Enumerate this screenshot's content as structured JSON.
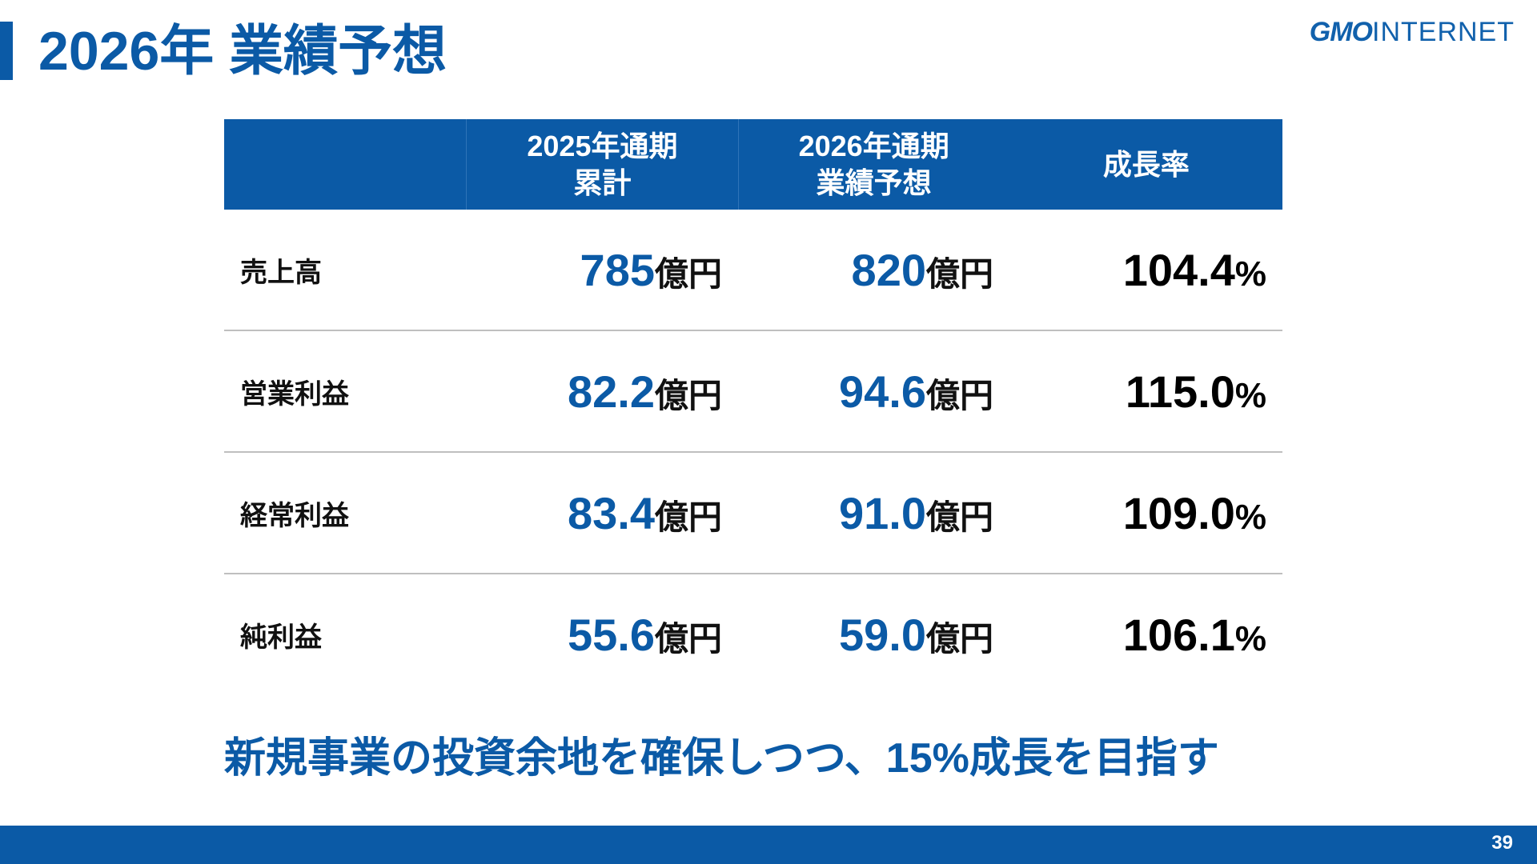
{
  "header": {
    "title": "2026年 業績予想",
    "logo": {
      "mark": "GMO",
      "name": "INTERNET"
    }
  },
  "table": {
    "columns": [
      [
        "2025年通期",
        "累計"
      ],
      [
        "2026年通期",
        "業績予想"
      ],
      [
        "成長率"
      ]
    ],
    "rows": [
      {
        "label": "売上高",
        "cells": [
          {
            "number": "785",
            "unit": "億円"
          },
          {
            "number": "820",
            "unit": "億円"
          },
          {
            "number": "104.4",
            "unit": "%"
          }
        ]
      },
      {
        "label": "営業利益",
        "cells": [
          {
            "number": "82.2",
            "unit": "億円"
          },
          {
            "number": "94.6",
            "unit": "億円"
          },
          {
            "number": "115.0",
            "unit": "%"
          }
        ]
      },
      {
        "label": "経常利益",
        "cells": [
          {
            "number": "83.4",
            "unit": "億円"
          },
          {
            "number": "91.0",
            "unit": "億円"
          },
          {
            "number": "109.0",
            "unit": "%"
          }
        ]
      },
      {
        "label": "純利益",
        "cells": [
          {
            "number": "55.6",
            "unit": "億円"
          },
          {
            "number": "59.0",
            "unit": "億円"
          },
          {
            "number": "106.1",
            "unit": "%"
          }
        ]
      }
    ]
  },
  "message": "新規事業の投資余地を確保しつつ、15%成長を目指す",
  "footer": {
    "page": "39"
  }
}
